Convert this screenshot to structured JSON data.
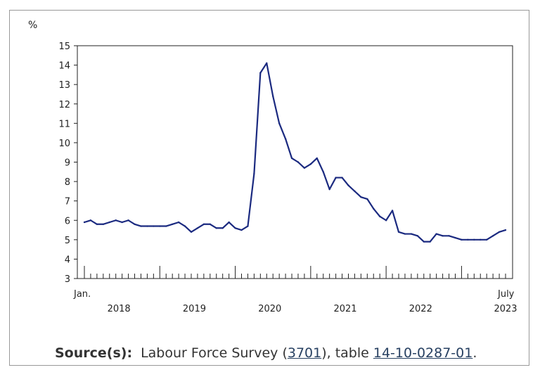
{
  "chart_data": {
    "type": "line",
    "ylabel": "%",
    "ylim": [
      3,
      15
    ],
    "yticks": [
      3,
      4,
      5,
      6,
      7,
      8,
      9,
      10,
      11,
      12,
      13,
      14,
      15
    ],
    "x_start_label": "Jan.",
    "x_end_label": "July",
    "year_labels": [
      "2018",
      "2019",
      "2020",
      "2021",
      "2022",
      "2023"
    ],
    "x_start": "2018-01",
    "x_end": "2023-07",
    "line_color": "#1b2a80",
    "grid": false,
    "series": [
      {
        "values": [
          5.9,
          6.0,
          5.8,
          5.8,
          5.9,
          6.0,
          5.9,
          6.0,
          5.8,
          5.7,
          5.7,
          5.7,
          5.7,
          5.7,
          5.8,
          5.9,
          5.7,
          5.4,
          5.6,
          5.8,
          5.8,
          5.6,
          5.6,
          5.9,
          5.6,
          5.5,
          5.7,
          8.4,
          13.6,
          14.1,
          12.4,
          11.0,
          10.2,
          9.2,
          9.0,
          8.7,
          8.9,
          9.2,
          8.5,
          7.6,
          8.2,
          8.2,
          7.8,
          7.5,
          7.2,
          7.1,
          6.6,
          6.2,
          6.0,
          6.5,
          5.4,
          5.3,
          5.3,
          5.2,
          4.9,
          4.9,
          5.3,
          5.2,
          5.2,
          5.1,
          5.0,
          5.0,
          5.0,
          5.0,
          5.0,
          5.2,
          5.4,
          5.5
        ]
      }
    ]
  },
  "source": {
    "label": "Source(s):",
    "text1": "Labour Force Survey (",
    "link1": "3701",
    "text2": "), table ",
    "link2": "14-10-0287-01",
    "text3": "."
  }
}
